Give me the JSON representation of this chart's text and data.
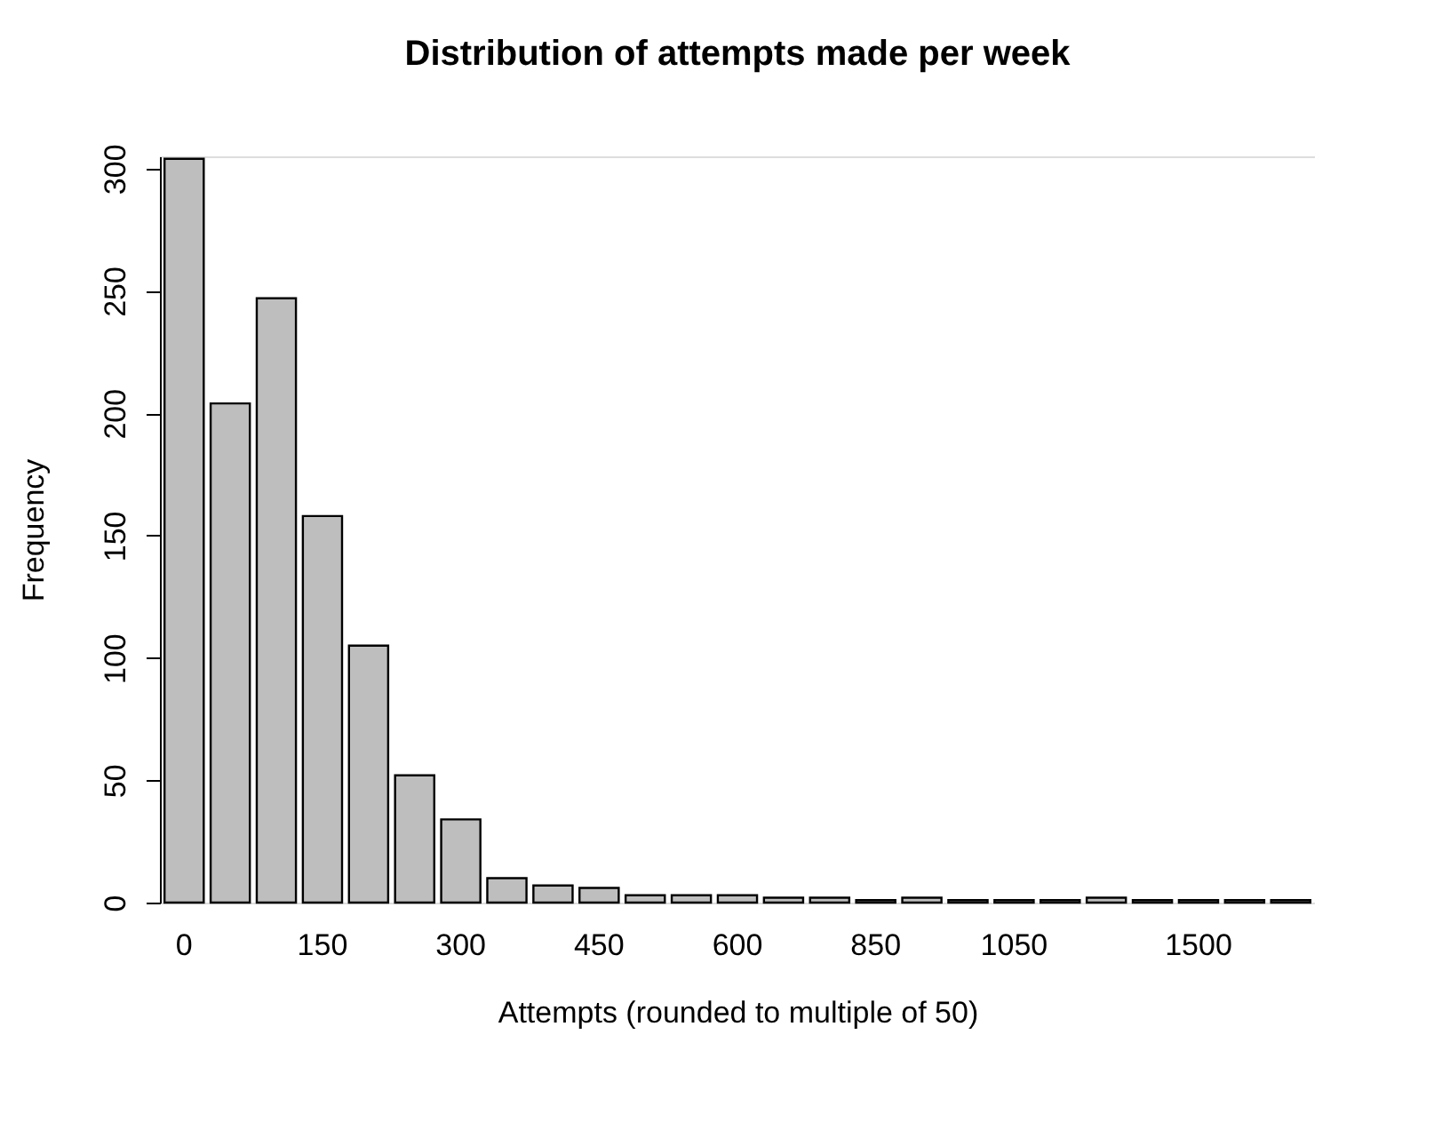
{
  "chart_data": {
    "type": "bar",
    "title": "Distribution of attempts made per week",
    "xlabel": "Attempts (rounded to multiple of 50)",
    "ylabel": "Frequency",
    "categories": [
      "0",
      null,
      null,
      "150",
      null,
      null,
      "300",
      null,
      null,
      "450",
      null,
      null,
      "600",
      null,
      null,
      "850",
      null,
      null,
      "1050",
      null,
      null,
      null,
      "1500",
      null,
      null
    ],
    "values": [
      304,
      204,
      247,
      158,
      105,
      52,
      34,
      10,
      7,
      6,
      3,
      3,
      3,
      2,
      2,
      1,
      2,
      1,
      1,
      1,
      2,
      1,
      1,
      1,
      1
    ],
    "color": "#bebebe",
    "ylim": [
      0,
      305
    ],
    "yticks": [
      0,
      50,
      100,
      150,
      200,
      250,
      300
    ],
    "grid": false
  }
}
